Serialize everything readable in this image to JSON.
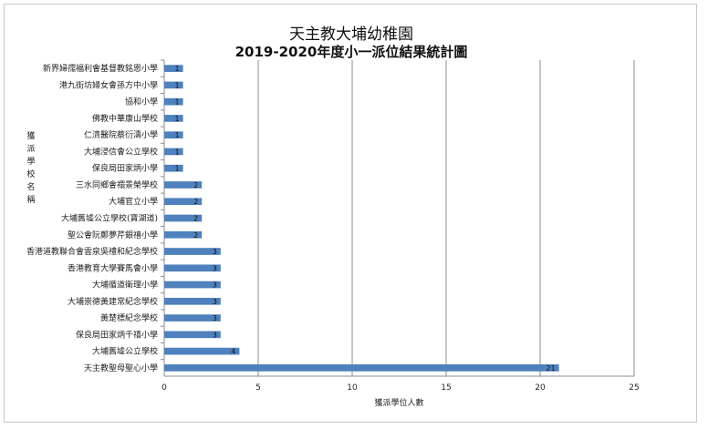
{
  "chart_data": {
    "type": "bar",
    "orientation": "horizontal",
    "title": "天主教大埔幼稚園",
    "subtitle": "2019-2020年度小一派位結果統計圖",
    "xlabel": "獲派學位人數",
    "ylabel": "獲派學校名稱",
    "xlim": [
      0,
      25
    ],
    "xticks": [
      "0",
      "5",
      "10",
      "15",
      "20",
      "25"
    ],
    "grid": true,
    "bar_color": "#4f81bd",
    "categories": [
      "新界婦孺福利會基督教銘恩小學",
      "港九街坊婦女會孫方中小學",
      "協和小學",
      "佛教中華康山學校",
      "仁濟醫院蔡衍濤小學",
      "大埔浸信會公立學校",
      "保良局田家炳小學",
      "三水同鄉會禤景榮學校",
      "大埔官立小學",
      "大埔舊墟公立學校(寶湖道)",
      "聖公會阮鄭夢芹銀禧小學",
      "香港道教聯合會雲泉吳禮和紀念學校",
      "香港教育大學賽馬會小學",
      "大埔循道衛理小學",
      "大埔崇德黃建常紀念學校",
      "黃楚標紀念學校",
      "保良局田家炳千禧小學",
      "大埔舊墟公立學校",
      "天主教聖母聖心小學"
    ],
    "values": [
      1,
      1,
      1,
      1,
      1,
      1,
      1,
      2,
      2,
      2,
      2,
      3,
      3,
      3,
      3,
      3,
      3,
      4,
      21
    ],
    "data_labels": [
      "1",
      "1",
      "1",
      "1",
      "1",
      "1",
      "1",
      "2",
      "2",
      "2",
      "2",
      "3",
      "3",
      "3",
      "3",
      "3",
      "3",
      "4",
      "21"
    ]
  }
}
